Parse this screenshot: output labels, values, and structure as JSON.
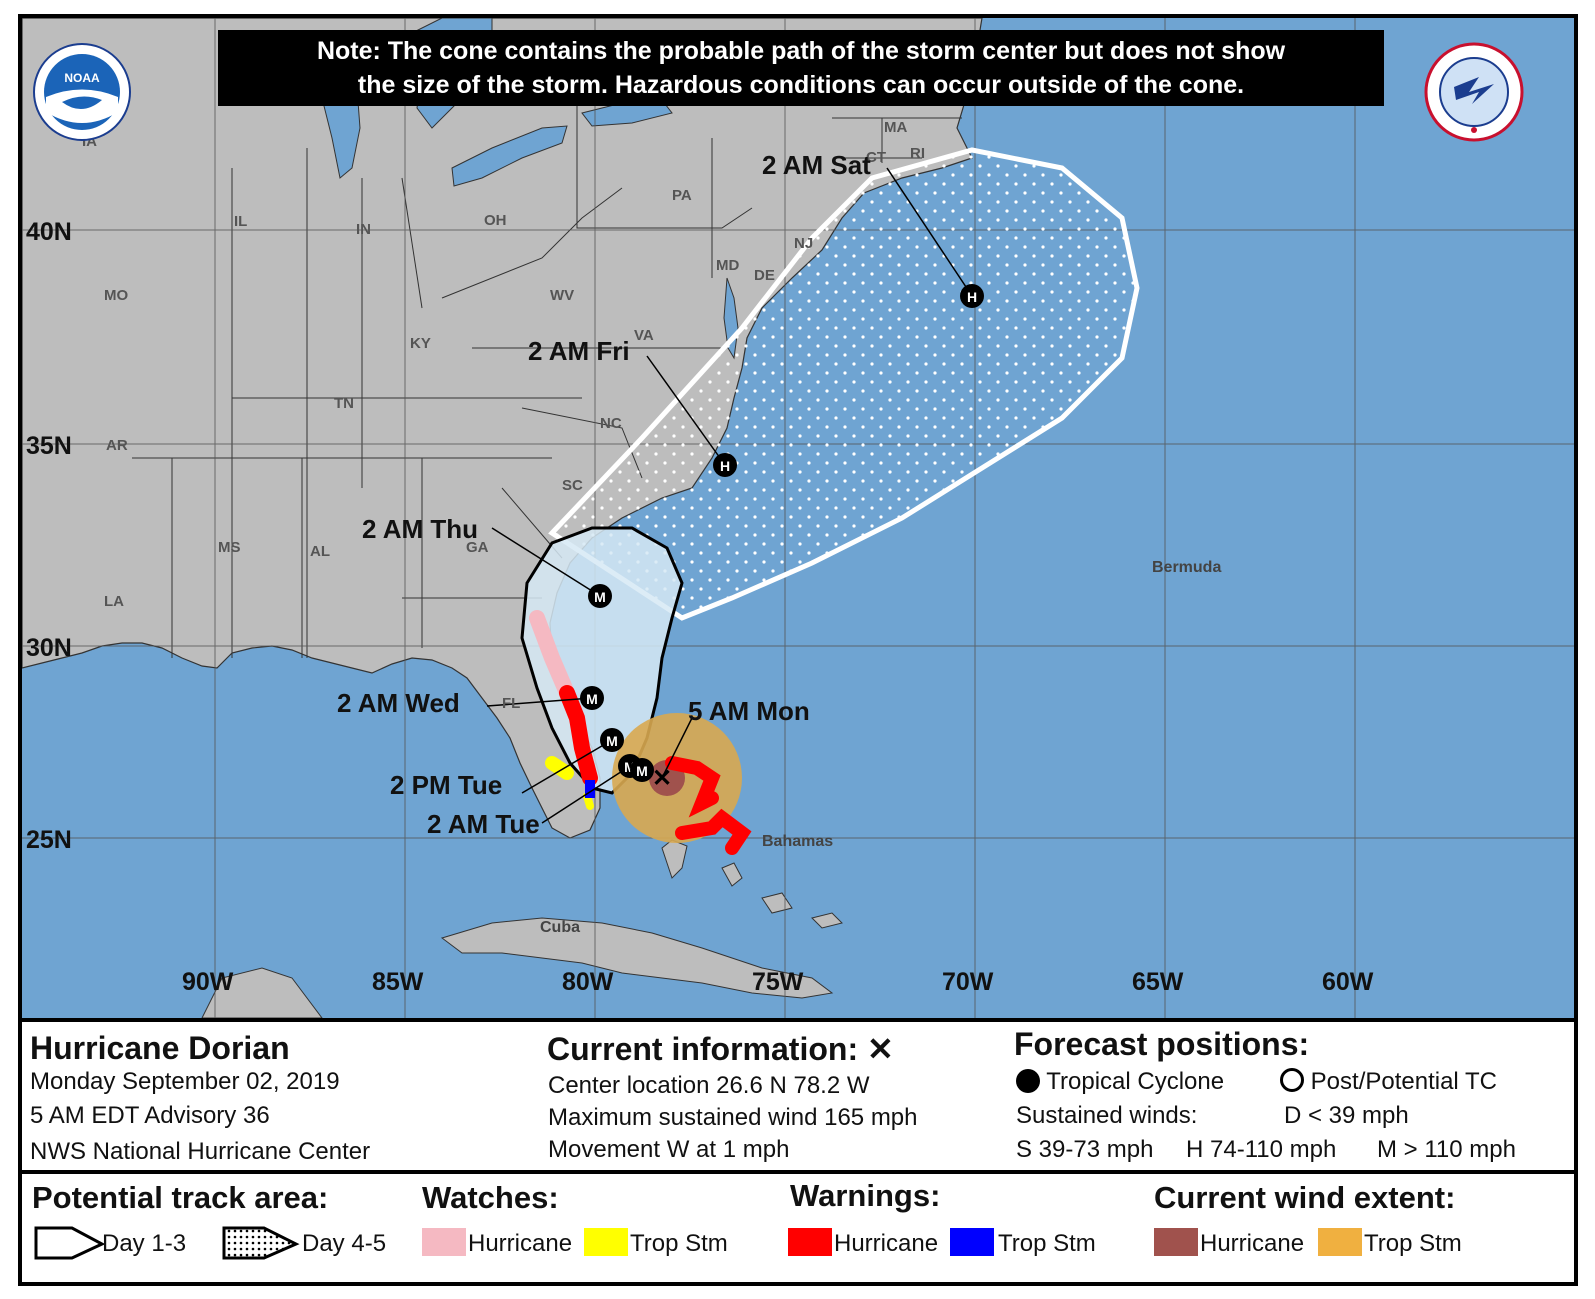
{
  "note": {
    "line1": "Note: The cone contains the probable path of the storm center but does not show",
    "line2": "the size of the storm. Hazardous conditions can occur outside of the cone."
  },
  "map": {
    "latitudes": [
      "40N",
      "35N",
      "30N",
      "25N"
    ],
    "longitudes": [
      "90W",
      "85W",
      "80W",
      "75W",
      "70W",
      "65W",
      "60W"
    ],
    "states": [
      "MA",
      "CT",
      "RI",
      "PA",
      "OH",
      "IL",
      "IN",
      "NJ",
      "MD",
      "DE",
      "WV",
      "MO",
      "KY",
      "VA",
      "TN",
      "NC",
      "AR",
      "SC",
      "MS",
      "AL",
      "GA",
      "LA",
      "FL",
      "IA"
    ],
    "places": [
      "Bermuda",
      "Bahamas",
      "Cuba"
    ],
    "forecast_points": [
      {
        "label": "5 AM Mon",
        "type": "M"
      },
      {
        "label": "2 AM Tue",
        "type": "M"
      },
      {
        "label": "2 PM Tue",
        "type": "M"
      },
      {
        "label": "2 AM Wed",
        "type": "M"
      },
      {
        "label": "2 AM Thu",
        "type": "M"
      },
      {
        "label": "2 AM Fri",
        "type": "H"
      },
      {
        "label": "2 AM Sat",
        "type": "H"
      }
    ],
    "colors": {
      "ocean": "#6fa4d2",
      "land": "#bdbdbd",
      "cone_day1_3": "#d6e9f5",
      "hurricane_warning": "#ff0000",
      "trop_storm_warning": "#0000ff",
      "hurricane_watch": "#f5b9c2",
      "trop_storm_watch": "#ffff00",
      "hurricane_wind": "#a0524d",
      "trop_storm_wind": "#d8a850"
    }
  },
  "info": {
    "storm_name": "Hurricane Dorian",
    "date": "Monday September 02, 2019",
    "advisory": "5 AM EDT Advisory 36",
    "center": "NWS National Hurricane Center",
    "current_title": "Current information: ✕",
    "location": "Center location 26.6 N 78.2 W",
    "wind": "Maximum sustained wind 165 mph",
    "movement": "Movement W at 1 mph",
    "forecast_title": "Forecast positions:",
    "tropical_cyclone": "Tropical Cyclone",
    "post_tc": "Post/Potential TC",
    "sustained_winds": "Sustained winds:",
    "d_range": "D < 39 mph",
    "s_range": "S 39-73 mph",
    "h_range": "H 74-110 mph",
    "m_range": "M > 110 mph"
  },
  "legend": {
    "track_title": "Potential track area:",
    "day13": "Day 1-3",
    "day45": "Day 4-5",
    "watches_title": "Watches:",
    "watch_hurricane": "Hurricane",
    "watch_trop": "Trop Stm",
    "warnings_title": "Warnings:",
    "warn_hurricane": "Hurricane",
    "warn_trop": "Trop Stm",
    "wind_title": "Current wind extent:",
    "wind_hurricane": "Hurricane",
    "wind_trop": "Trop Stm"
  }
}
